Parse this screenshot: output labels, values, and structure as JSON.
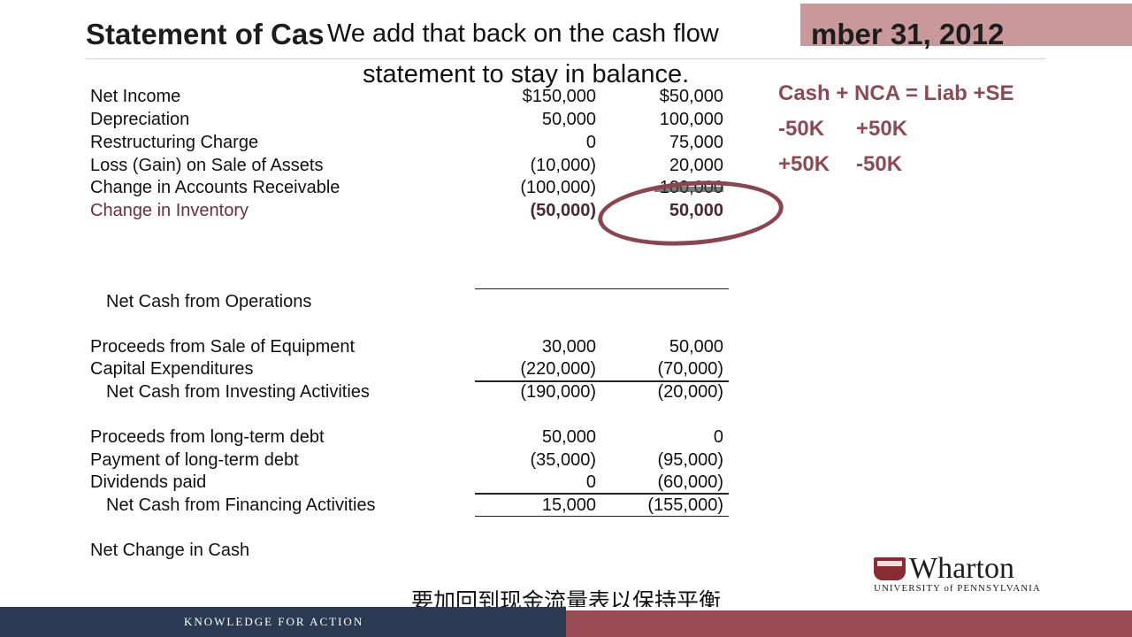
{
  "title_left": "Statement of Cas",
  "title_right": "mber 31, 2012",
  "subtitle_en_line1": "We add that back on the cash flow",
  "subtitle_en_line2": "statement to stay in balance.",
  "subtitle_cn": "要加回到现金流量表以保持平衡",
  "rows": [
    {
      "label": "Net Income",
      "c1": "$150,000",
      "c2": "$50,000"
    },
    {
      "label": "Depreciation",
      "c1": "50,000",
      "c2": "100,000"
    },
    {
      "label": "Restructuring Charge",
      "c1": "0",
      "c2": "75,000"
    },
    {
      "label": "Loss (Gain) on Sale of Assets",
      "c1": "(10,000)",
      "c2": "20,000"
    },
    {
      "label": "Change in Accounts Receivable",
      "c1": "(100,000)",
      "c2": "100,000"
    },
    {
      "label": "Change in Inventory",
      "c1": "(50,000)",
      "c2": "50,000"
    },
    {
      "label": "Net Cash from Operations",
      "c1": "",
      "c2": ""
    },
    {
      "label": "Proceeds from Sale of Equipment",
      "c1": "30,000",
      "c2": "50,000"
    },
    {
      "label": "Capital Expenditures",
      "c1": "(220,000)",
      "c2": "(70,000)"
    },
    {
      "label": "Net Cash from Investing Activities",
      "c1": "(190,000)",
      "c2": "(20,000)"
    },
    {
      "label": "Proceeds from long-term debt",
      "c1": "50,000",
      "c2": "0"
    },
    {
      "label": "Payment of long-term debt",
      "c1": "(35,000)",
      "c2": "(95,000)"
    },
    {
      "label": "Dividends paid",
      "c1": "0",
      "c2": "(60,000)"
    },
    {
      "label": "Net Cash from Financing Activities",
      "c1": "15,000",
      "c2": "(155,000)"
    },
    {
      "label": "Net Change in Cash",
      "c1": "",
      "c2": ""
    }
  ],
  "equation": {
    "line1": "Cash + NCA = Liab +SE",
    "line2a": "-50K",
    "line2b": "+50K",
    "line3a": "+50K",
    "line3b": "-50K"
  },
  "logo": {
    "name": "Wharton",
    "university": "UNIVERSITY of PENNSYLVANIA"
  },
  "footer_tagline": "KNOWLEDGE FOR ACTION",
  "colors": {
    "accent": "#8c4a55",
    "footer_dark": "#2b3a52",
    "footer_red": "#9a4b56"
  }
}
